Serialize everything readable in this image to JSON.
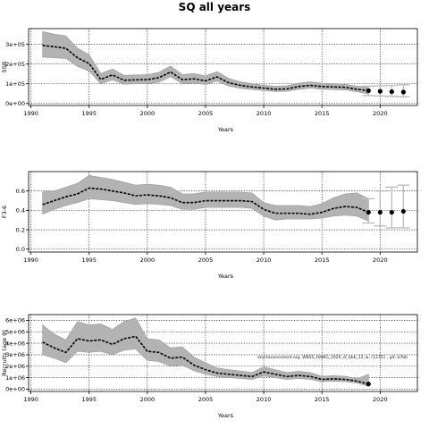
{
  "figure": {
    "title": "SQ all years",
    "note": "stockassessment.org, WBSS_HAWG_2020_sf_bbb_12_w, r12351 , git: b7bb"
  },
  "colors": {
    "band": "#b3b3b3",
    "band_edge": "#999999",
    "line": "#000000",
    "errorbar": "#bdbdbd",
    "point": "#000000"
  },
  "chart_data": [
    {
      "type": "line",
      "xlabel": "Years",
      "ylabel": "SSB",
      "xlim": [
        1989.8,
        2023.2
      ],
      "ylim": [
        -10000,
        380000
      ],
      "xticks": [
        1990,
        1995,
        2000,
        2005,
        2010,
        2015,
        2020
      ],
      "yticks": [
        0,
        100000,
        200000,
        300000
      ],
      "ytick_labels": [
        "0e+00",
        "1e+05",
        "2e+05",
        "3e+05"
      ],
      "grid": true,
      "x": [
        1991,
        1992,
        1993,
        1994,
        1995,
        1996,
        1997,
        1998,
        1999,
        2000,
        2001,
        2002,
        2003,
        2004,
        2005,
        2006,
        2007,
        2008,
        2009,
        2010,
        2011,
        2012,
        2013,
        2014,
        2015,
        2016,
        2017,
        2018,
        2019
      ],
      "estimate": [
        295000,
        288000,
        280000,
        232000,
        203000,
        122000,
        145000,
        118000,
        120000,
        121000,
        131000,
        160000,
        121000,
        125000,
        115000,
        135000,
        105000,
        92000,
        84000,
        78000,
        72000,
        74000,
        86000,
        92000,
        86000,
        84000,
        82000,
        72000,
        65000
      ],
      "lower": [
        235000,
        232000,
        228000,
        188000,
        165000,
        100000,
        120000,
        98000,
        100000,
        100000,
        108000,
        135000,
        100000,
        104000,
        96000,
        113000,
        88000,
        77000,
        71000,
        66000,
        61000,
        62000,
        72000,
        78000,
        72000,
        71000,
        69000,
        60000,
        48000
      ],
      "upper": [
        365000,
        352000,
        343000,
        280000,
        248000,
        152000,
        175000,
        143000,
        145000,
        146000,
        158000,
        190000,
        147000,
        152000,
        140000,
        162000,
        127000,
        110000,
        101000,
        93000,
        87000,
        90000,
        103000,
        110000,
        103000,
        101000,
        98000,
        88000,
        85000
      ],
      "forecast": {
        "x": [
          2019,
          2020,
          2021,
          2022
        ],
        "estimate": [
          65000,
          62000,
          60000,
          58000
        ],
        "lower": [
          40000,
          38000,
          36000,
          34000
        ],
        "upper": [
          88000,
          90000,
          92000,
          95000
        ]
      }
    },
    {
      "type": "line",
      "xlabel": "Years",
      "ylabel": "F3-6",
      "xlim": [
        1989.8,
        2023.2
      ],
      "ylim": [
        -0.03,
        0.8
      ],
      "xticks": [
        1990,
        1995,
        2000,
        2005,
        2010,
        2015,
        2020
      ],
      "yticks": [
        0,
        0.2,
        0.4,
        0.6
      ],
      "ytick_labels": [
        "0.0",
        "0.2",
        "0.4",
        "0.6"
      ],
      "grid": true,
      "x": [
        1991,
        1992,
        1993,
        1994,
        1995,
        1996,
        1997,
        1998,
        1999,
        2000,
        2001,
        2002,
        2003,
        2004,
        2005,
        2006,
        2007,
        2008,
        2009,
        2010,
        2011,
        2012,
        2013,
        2014,
        2015,
        2016,
        2017,
        2018,
        2019
      ],
      "estimate": [
        0.46,
        0.5,
        0.54,
        0.57,
        0.63,
        0.62,
        0.6,
        0.58,
        0.55,
        0.56,
        0.55,
        0.53,
        0.48,
        0.48,
        0.5,
        0.5,
        0.5,
        0.5,
        0.49,
        0.41,
        0.37,
        0.37,
        0.37,
        0.36,
        0.38,
        0.42,
        0.44,
        0.43,
        0.38
      ],
      "lower": [
        0.36,
        0.41,
        0.45,
        0.48,
        0.52,
        0.51,
        0.5,
        0.48,
        0.46,
        0.47,
        0.46,
        0.45,
        0.41,
        0.41,
        0.43,
        0.43,
        0.43,
        0.43,
        0.42,
        0.34,
        0.3,
        0.31,
        0.31,
        0.31,
        0.32,
        0.34,
        0.35,
        0.34,
        0.29
      ],
      "upper": [
        0.59,
        0.6,
        0.64,
        0.68,
        0.76,
        0.74,
        0.72,
        0.69,
        0.66,
        0.67,
        0.66,
        0.64,
        0.57,
        0.57,
        0.59,
        0.59,
        0.59,
        0.59,
        0.58,
        0.48,
        0.45,
        0.45,
        0.45,
        0.44,
        0.47,
        0.53,
        0.57,
        0.58,
        0.52
      ],
      "forecast": {
        "x": [
          2019,
          2020,
          2021,
          2022
        ],
        "estimate": [
          0.38,
          0.38,
          0.38,
          0.39
        ],
        "lower": [
          0.27,
          0.24,
          0.22,
          0.22
        ],
        "upper": [
          0.52,
          0.6,
          0.64,
          0.66
        ]
      }
    },
    {
      "type": "line",
      "xlabel": "Years",
      "ylabel": "Recruits (age 0)",
      "xlim": [
        1989.8,
        2023.2
      ],
      "ylim": [
        -200000,
        6500000
      ],
      "xticks": [
        1990,
        1995,
        2000,
        2005,
        2010,
        2015,
        2020
      ],
      "yticks": [
        0,
        1000000,
        2000000,
        3000000,
        4000000,
        5000000,
        6000000
      ],
      "ytick_labels": [
        "0e+00",
        "1e+06",
        "2e+06",
        "3e+06",
        "4e+06",
        "5e+06",
        "6e+06"
      ],
      "grid": true,
      "x": [
        1991,
        1992,
        1993,
        1994,
        1995,
        1996,
        1997,
        1998,
        1999,
        2000,
        2001,
        2002,
        2003,
        2004,
        2005,
        2006,
        2007,
        2008,
        2009,
        2010,
        2011,
        2012,
        2013,
        2014,
        2015,
        2016,
        2017,
        2018,
        2019
      ],
      "estimate": [
        4100000,
        3600000,
        3200000,
        4400000,
        4200000,
        4300000,
        3900000,
        4400000,
        4600000,
        3300000,
        3200000,
        2700000,
        2800000,
        2100000,
        1700000,
        1400000,
        1300000,
        1200000,
        1100000,
        1500000,
        1300000,
        1100000,
        1200000,
        1100000,
        850000,
        900000,
        850000,
        700000,
        450000
      ],
      "lower": [
        3000000,
        2700000,
        2300000,
        3300000,
        3200000,
        3300000,
        3000000,
        3400000,
        3500000,
        2500000,
        2400000,
        2000000,
        2100000,
        1600000,
        1300000,
        1100000,
        1000000,
        920000,
        850000,
        1150000,
        1000000,
        850000,
        930000,
        850000,
        650000,
        690000,
        650000,
        530000,
        250000
      ],
      "upper": [
        5600000,
        4800000,
        4300000,
        5900000,
        5600000,
        5700000,
        5200000,
        5900000,
        6200000,
        4400000,
        4300000,
        3600000,
        3700000,
        2800000,
        2300000,
        1850000,
        1700000,
        1580000,
        1450000,
        1950000,
        1700000,
        1450000,
        1560000,
        1450000,
        1120000,
        1180000,
        1120000,
        930000,
        1300000
      ]
    }
  ]
}
